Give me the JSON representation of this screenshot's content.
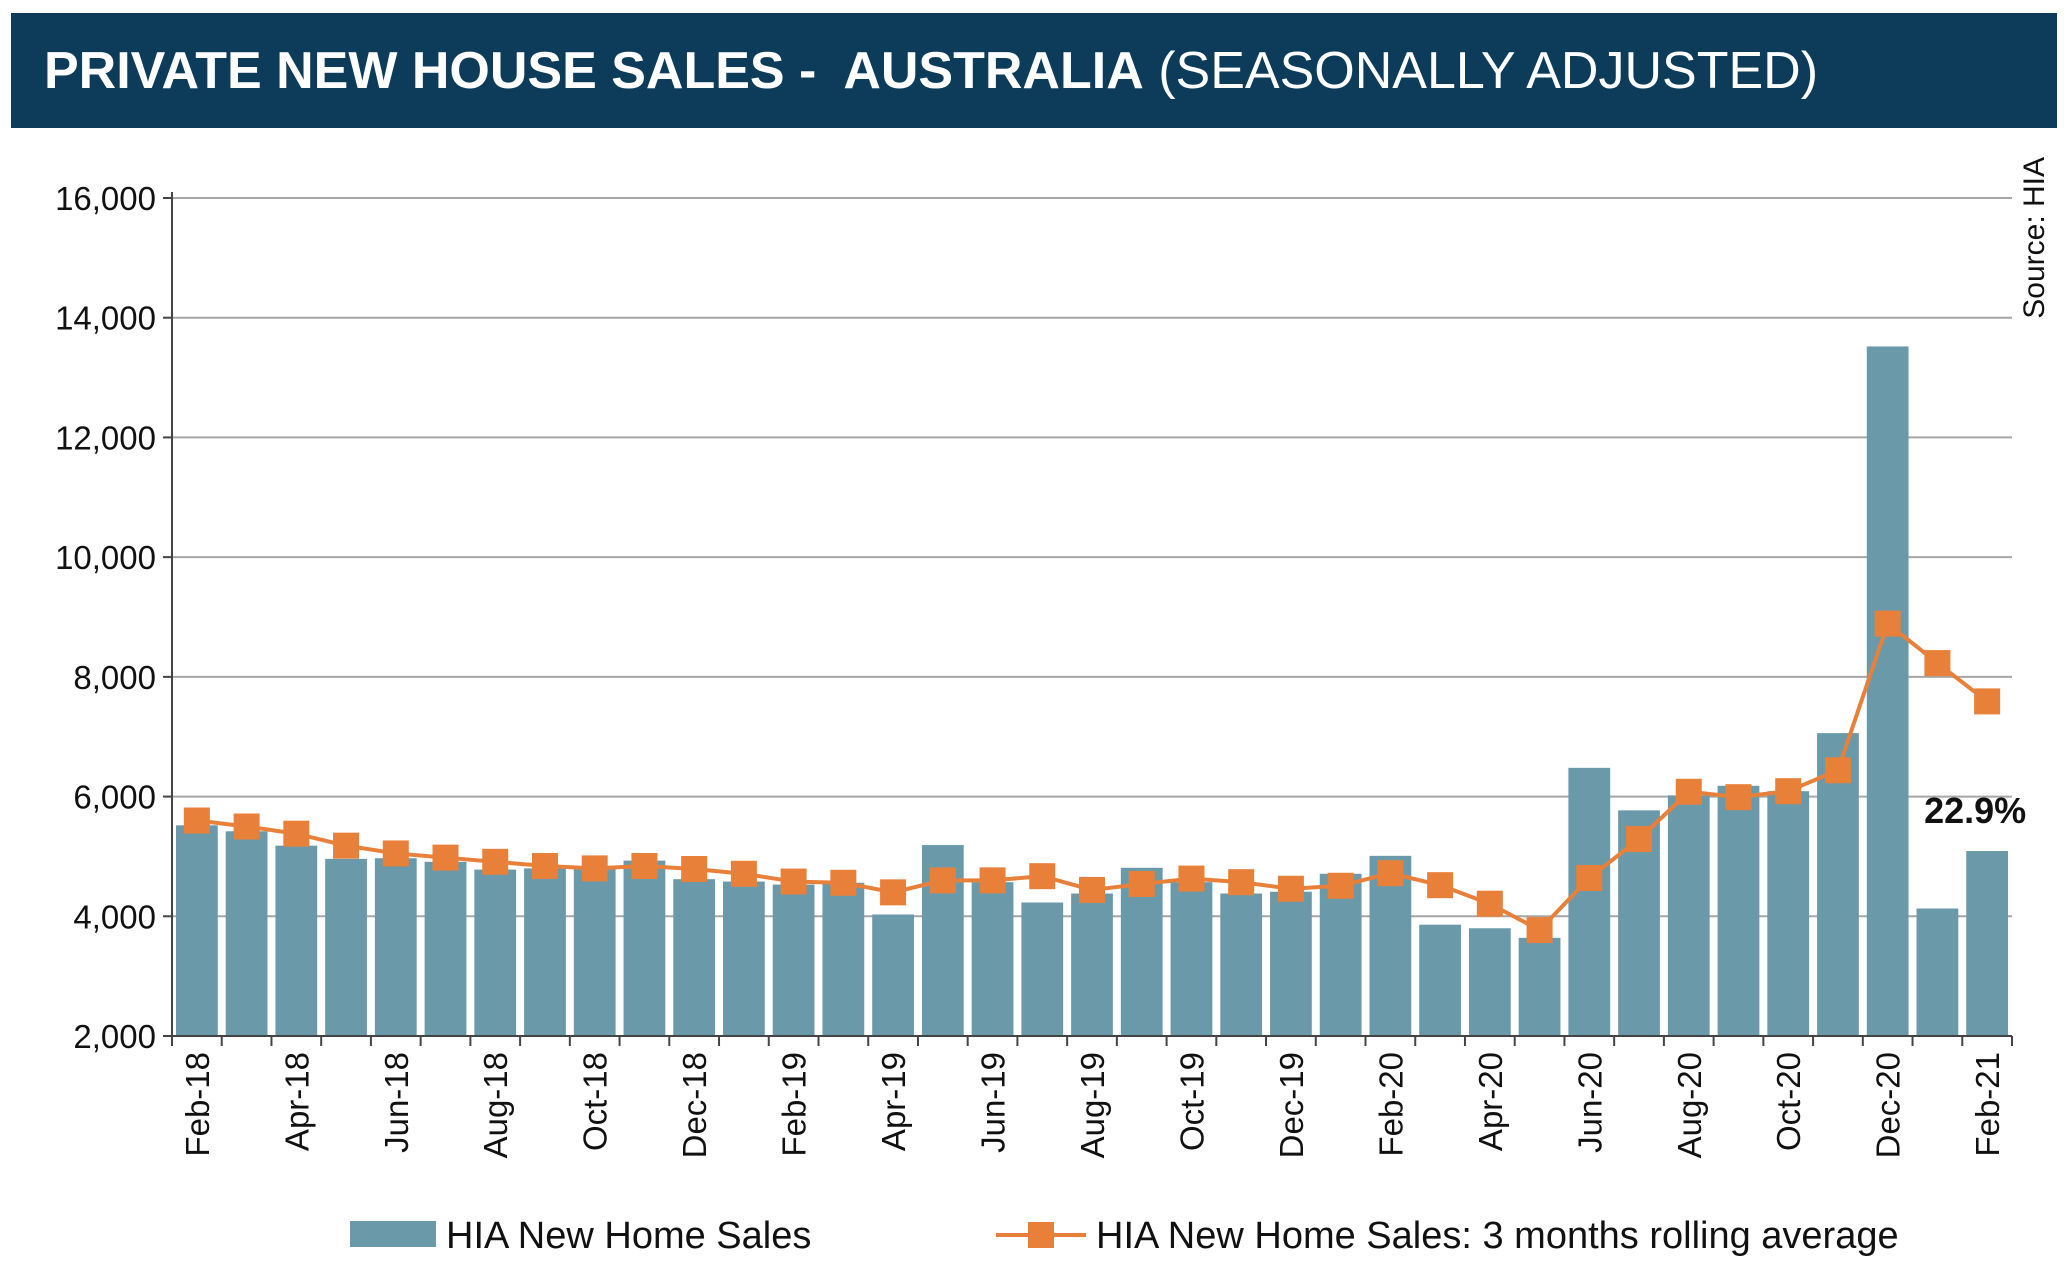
{
  "title": {
    "main": "PRIVATE NEW HOUSE SALES -  AUSTRALIA",
    "sub": "(SEASONALLY ADJUSTED)"
  },
  "source": "Source: HIA",
  "colors": {
    "banner": "#0c3c5a",
    "bar": "#6a9aaa",
    "line": "#e8803a",
    "grid": "#a6a6a6"
  },
  "chart_data": {
    "type": "bar",
    "categories": [
      "Feb-18",
      "Mar-18",
      "Apr-18",
      "May-18",
      "Jun-18",
      "Jul-18",
      "Aug-18",
      "Sep-18",
      "Oct-18",
      "Nov-18",
      "Dec-18",
      "Jan-19",
      "Feb-19",
      "Mar-19",
      "Apr-19",
      "May-19",
      "Jun-19",
      "Jul-19",
      "Aug-19",
      "Sep-19",
      "Oct-19",
      "Nov-19",
      "Dec-19",
      "Jan-20",
      "Feb-20",
      "Mar-20",
      "Apr-20",
      "May-20",
      "Jun-20",
      "Jul-20",
      "Aug-20",
      "Sep-20",
      "Oct-20",
      "Nov-20",
      "Dec-20",
      "Jan-21",
      "Feb-21"
    ],
    "tick_labels": [
      "Feb-18",
      "Apr-18",
      "Jun-18",
      "Aug-18",
      "Oct-18",
      "Dec-18",
      "Feb-19",
      "Apr-19",
      "Jun-19",
      "Aug-19",
      "Oct-19",
      "Dec-19",
      "Feb-20",
      "Apr-20",
      "Jun-20",
      "Aug-20",
      "Oct-20",
      "Dec-20",
      "Feb-21"
    ],
    "series": [
      {
        "name": "HIA New Home Sales",
        "type": "bar",
        "values": [
          5520,
          5420,
          5180,
          4960,
          4970,
          4910,
          4780,
          4800,
          4790,
          4930,
          4620,
          4580,
          4530,
          4560,
          4030,
          5190,
          4570,
          4230,
          4380,
          4810,
          4570,
          4380,
          4410,
          4710,
          5010,
          3860,
          3800,
          3640,
          6480,
          5770,
          6020,
          6180,
          6090,
          7060,
          13520,
          4130,
          5090
        ]
      },
      {
        "name": "HIA New Home Sales: 3 months rolling average",
        "type": "line",
        "values": [
          5600,
          5500,
          5380,
          5180,
          5050,
          4980,
          4910,
          4840,
          4800,
          4840,
          4790,
          4710,
          4580,
          4560,
          4400,
          4600,
          4600,
          4670,
          4440,
          4540,
          4630,
          4570,
          4460,
          4510,
          4720,
          4520,
          4210,
          3770,
          4640,
          5290,
          6080,
          5990,
          6090,
          6440,
          8890,
          8230,
          7590
        ]
      }
    ],
    "yticks": [
      "2,000",
      "4,000",
      "6,000",
      "8,000",
      "10,000",
      "12,000",
      "14,000",
      "16,000"
    ],
    "ylim": [
      2000,
      16000
    ],
    "grid": true,
    "legend_position": "bottom",
    "annotation": {
      "label": "22.9%",
      "category": "Feb-21"
    }
  }
}
